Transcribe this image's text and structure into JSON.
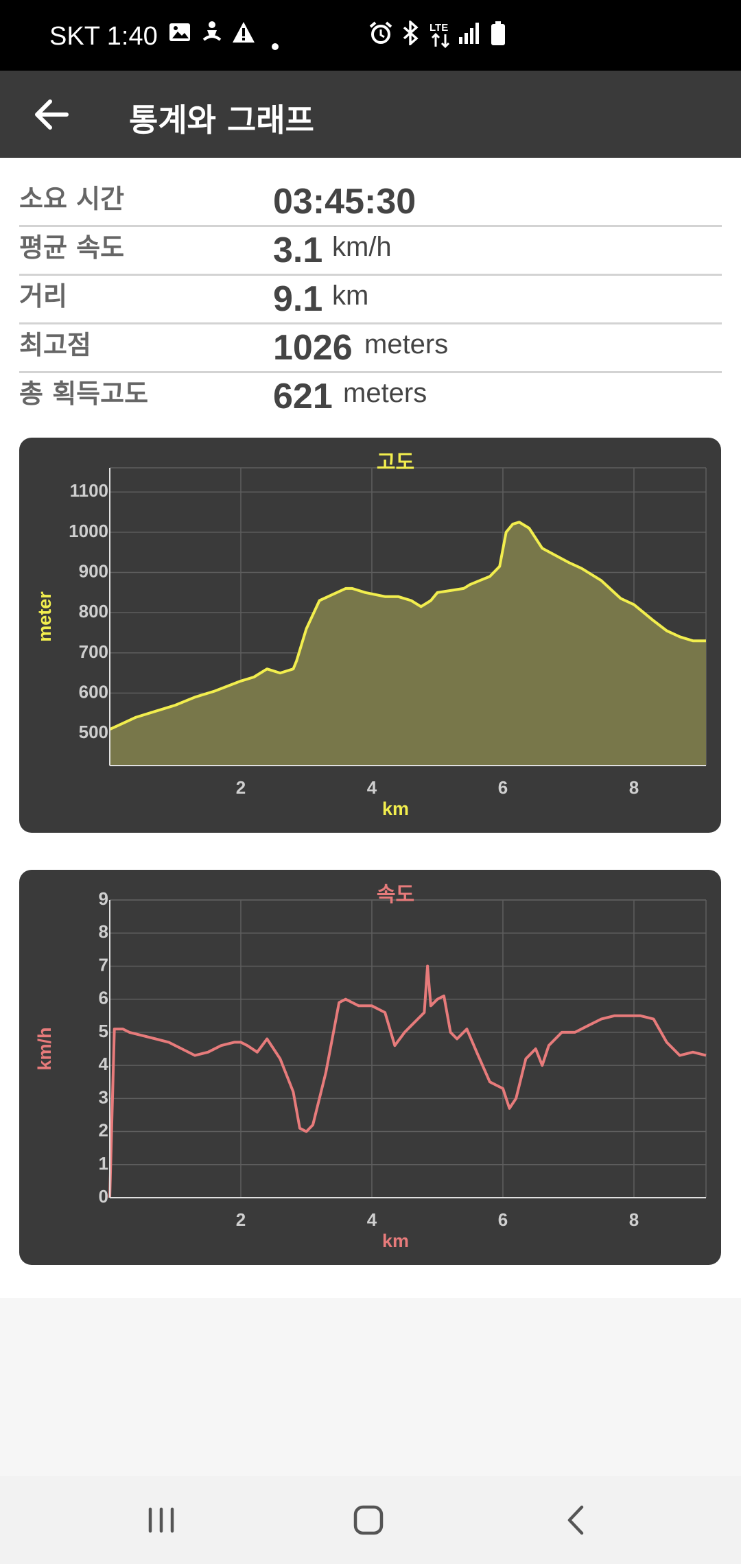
{
  "status_bar": {
    "time": "SKT 1:40",
    "left_icons": [
      "image-icon",
      "person-icon",
      "warning-icon",
      "dot-icon"
    ],
    "right_icons": [
      "alarm-icon",
      "bluetooth-icon",
      "lte-icon",
      "signal-icon",
      "battery-icon"
    ],
    "lte_label": "LTE"
  },
  "app_bar": {
    "title": "통계와 그래프",
    "back_icon": "arrow-left-icon"
  },
  "stats": [
    {
      "label": "소요 시간",
      "value": "03:45:30",
      "unit": ""
    },
    {
      "label": "평균 속도",
      "value": "3.1",
      "unit": "km/h"
    },
    {
      "label": "거리",
      "value": "9.1",
      "unit": "km"
    },
    {
      "label": "최고점",
      "value": "1026",
      "unit": "meters"
    },
    {
      "label": "총 획득고도",
      "value": "621",
      "unit": "meters"
    }
  ],
  "chart_data": [
    {
      "type": "area",
      "title": "고도",
      "xlabel": "km",
      "ylabel": "meter",
      "line_color": "#f2ee4e",
      "fill_color": "#78774a",
      "xlim": [
        0,
        9.1
      ],
      "ylim": [
        420,
        1160
      ],
      "x_ticks": [
        2,
        4,
        6,
        8
      ],
      "y_ticks": [
        500,
        600,
        700,
        800,
        900,
        1000,
        1100
      ],
      "grid": true,
      "series": [
        {
          "x": [
            0,
            0.2,
            0.4,
            0.7,
            1.0,
            1.3,
            1.6,
            2.0,
            2.2,
            2.4,
            2.6,
            2.8,
            2.85,
            3.0,
            3.2,
            3.4,
            3.6,
            3.7,
            3.9,
            4.2,
            4.4,
            4.6,
            4.75,
            4.9,
            5.0,
            5.2,
            5.4,
            5.5,
            5.65,
            5.8,
            5.95,
            6.05,
            6.15,
            6.25,
            6.4,
            6.6,
            7.0,
            7.2,
            7.5,
            7.8,
            8.0,
            8.3,
            8.5,
            8.7,
            8.9,
            9.1
          ],
          "values": [
            510,
            525,
            540,
            555,
            570,
            590,
            605,
            630,
            640,
            660,
            650,
            660,
            680,
            760,
            830,
            845,
            860,
            860,
            850,
            840,
            840,
            830,
            815,
            830,
            850,
            855,
            860,
            870,
            880,
            890,
            915,
            1000,
            1020,
            1025,
            1010,
            960,
            925,
            910,
            880,
            835,
            820,
            780,
            755,
            740,
            730,
            730
          ]
        }
      ]
    },
    {
      "type": "line",
      "title": "속도",
      "xlabel": "km",
      "ylabel": "km/h",
      "line_color": "#e77b7b",
      "xlim": [
        0,
        9.1
      ],
      "ylim": [
        0,
        9
      ],
      "x_ticks": [
        2,
        4,
        6,
        8
      ],
      "y_ticks": [
        0,
        1,
        2,
        3,
        4,
        5,
        6,
        7,
        8,
        9
      ],
      "grid": true,
      "series": [
        {
          "x": [
            0,
            0.07,
            0.2,
            0.3,
            0.5,
            0.7,
            0.9,
            1.1,
            1.3,
            1.5,
            1.7,
            1.9,
            2.0,
            2.1,
            2.25,
            2.4,
            2.6,
            2.8,
            2.9,
            3.0,
            3.1,
            3.3,
            3.5,
            3.6,
            3.8,
            4.0,
            4.1,
            4.2,
            4.35,
            4.5,
            4.6,
            4.7,
            4.8,
            4.85,
            4.9,
            5.0,
            5.1,
            5.2,
            5.3,
            5.45,
            5.6,
            5.8,
            6.0,
            6.1,
            6.2,
            6.35,
            6.5,
            6.6,
            6.7,
            6.9,
            7.1,
            7.3,
            7.5,
            7.7,
            7.9,
            8.1,
            8.3,
            8.5,
            8.7,
            8.9,
            9.1
          ],
          "values": [
            0,
            5.1,
            5.1,
            5.0,
            4.9,
            4.8,
            4.7,
            4.5,
            4.3,
            4.4,
            4.6,
            4.7,
            4.7,
            4.6,
            4.4,
            4.8,
            4.2,
            3.2,
            2.1,
            2.0,
            2.2,
            3.8,
            5.9,
            6.0,
            5.8,
            5.8,
            5.7,
            5.6,
            4.6,
            5.0,
            5.2,
            5.4,
            5.6,
            7.0,
            5.8,
            6.0,
            6.1,
            5.0,
            4.8,
            5.1,
            4.4,
            3.5,
            3.3,
            2.7,
            3.0,
            4.2,
            4.5,
            4.0,
            4.6,
            5.0,
            5.0,
            5.2,
            5.4,
            5.5,
            5.5,
            5.5,
            5.4,
            4.7,
            4.3,
            4.4,
            4.3
          ]
        }
      ]
    }
  ]
}
